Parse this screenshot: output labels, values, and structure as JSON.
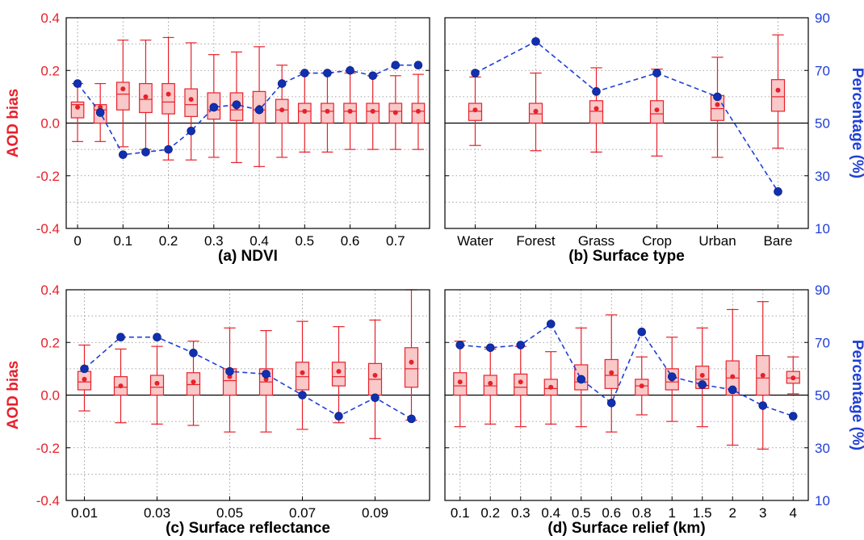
{
  "figure": {
    "left_axis_label": "AOD bias",
    "right_axis_label": "Percentage (%)",
    "colors": {
      "box": "#e8202a",
      "box_fill": "#f9c8c8",
      "line": "#1f3fd6",
      "marker": "#1030b0",
      "left_axis": "#e8202a",
      "right_axis": "#1f3fd6",
      "zero_line": "#000000"
    }
  },
  "chart_data": [
    {
      "type": "box",
      "id": "a",
      "xlabel": "(a) NDVI",
      "left_ylim": [
        -0.4,
        0.4
      ],
      "left_yticks": [
        "0.4",
        "0.2",
        "0.0",
        "-0.2",
        "-0.4"
      ],
      "right_ylim": [
        10,
        90
      ],
      "right_yticks": [
        "90",
        "70",
        "50",
        "30",
        "10"
      ],
      "grid": true,
      "x_ticks": [
        "0",
        "0.1",
        "0.2",
        "0.3",
        "0.4",
        "0.5",
        "0.6",
        "0.7"
      ],
      "categories": [
        "0",
        "0.05",
        "0.1",
        "0.15",
        "0.2",
        "0.25",
        "0.3",
        "0.35",
        "0.4",
        "0.45",
        "0.5",
        "0.55",
        "0.6",
        "0.65",
        "0.7",
        "0.75"
      ],
      "boxes": [
        {
          "whisker_low": -0.07,
          "q1": 0.02,
          "median": 0.07,
          "q3": 0.08,
          "whisker_high": 0.15,
          "mean": 0.06
        },
        {
          "whisker_low": -0.07,
          "q1": 0.0,
          "median": 0.05,
          "q3": 0.07,
          "whisker_high": 0.15,
          "mean": 0.06
        },
        {
          "whisker_low": -0.09,
          "q1": 0.05,
          "median": 0.11,
          "q3": 0.155,
          "whisker_high": 0.315,
          "mean": 0.13
        },
        {
          "whisker_low": -0.1,
          "q1": 0.04,
          "median": 0.09,
          "q3": 0.15,
          "whisker_high": 0.315,
          "mean": 0.1
        },
        {
          "whisker_low": -0.14,
          "q1": 0.035,
          "median": 0.08,
          "q3": 0.15,
          "whisker_high": 0.325,
          "mean": 0.11
        },
        {
          "whisker_low": -0.14,
          "q1": 0.025,
          "median": 0.07,
          "q3": 0.13,
          "whisker_high": 0.305,
          "mean": 0.09
        },
        {
          "whisker_low": -0.13,
          "q1": 0.015,
          "median": 0.05,
          "q3": 0.115,
          "whisker_high": 0.26,
          "mean": 0.06
        },
        {
          "whisker_low": -0.15,
          "q1": 0.01,
          "median": 0.05,
          "q3": 0.115,
          "whisker_high": 0.27,
          "mean": 0.06
        },
        {
          "whisker_low": -0.165,
          "q1": 0.0,
          "median": 0.05,
          "q3": 0.12,
          "whisker_high": 0.29,
          "mean": 0.06
        },
        {
          "whisker_low": -0.13,
          "q1": 0.0,
          "median": 0.05,
          "q3": 0.09,
          "whisker_high": 0.22,
          "mean": 0.05
        },
        {
          "whisker_low": -0.11,
          "q1": 0.0,
          "median": 0.045,
          "q3": 0.075,
          "whisker_high": 0.19,
          "mean": 0.045
        },
        {
          "whisker_low": -0.11,
          "q1": 0.0,
          "median": 0.045,
          "q3": 0.075,
          "whisker_high": 0.19,
          "mean": 0.045
        },
        {
          "whisker_low": -0.1,
          "q1": 0.0,
          "median": 0.045,
          "q3": 0.075,
          "whisker_high": 0.19,
          "mean": 0.045
        },
        {
          "whisker_low": -0.1,
          "q1": 0.0,
          "median": 0.045,
          "q3": 0.075,
          "whisker_high": 0.18,
          "mean": 0.045
        },
        {
          "whisker_low": -0.1,
          "q1": 0.0,
          "median": 0.045,
          "q3": 0.075,
          "whisker_high": 0.18,
          "mean": 0.04
        },
        {
          "whisker_low": -0.1,
          "q1": 0.0,
          "median": 0.045,
          "q3": 0.075,
          "whisker_high": 0.185,
          "mean": 0.045
        }
      ],
      "percentage": [
        65,
        54,
        38,
        39,
        40,
        47,
        56,
        57,
        55,
        65,
        69,
        69,
        70,
        68,
        72,
        72
      ]
    },
    {
      "type": "box",
      "id": "b",
      "xlabel": "(b) Surface type",
      "left_ylim": [
        -0.4,
        0.4
      ],
      "left_yticks": [
        "0.4",
        "0.2",
        "0.0",
        "-0.2",
        "-0.4"
      ],
      "right_ylim": [
        10,
        90
      ],
      "right_yticks": [
        "90",
        "70",
        "50",
        "30",
        "10"
      ],
      "grid": true,
      "x_ticks": [
        "Water",
        "Forest",
        "Grass",
        "Crop",
        "Urban",
        "Bare"
      ],
      "categories": [
        "Water",
        "Forest",
        "Grass",
        "Crop",
        "Urban",
        "Bare"
      ],
      "boxes": [
        {
          "whisker_low": -0.085,
          "q1": 0.01,
          "median": 0.045,
          "q3": 0.075,
          "whisker_high": 0.175,
          "mean": 0.05
        },
        {
          "whisker_low": -0.105,
          "q1": 0.0,
          "median": 0.035,
          "q3": 0.075,
          "whisker_high": 0.19,
          "mean": 0.045
        },
        {
          "whisker_low": -0.11,
          "q1": 0.0,
          "median": 0.045,
          "q3": 0.085,
          "whisker_high": 0.21,
          "mean": 0.055
        },
        {
          "whisker_low": -0.125,
          "q1": 0.0,
          "median": 0.035,
          "q3": 0.085,
          "whisker_high": 0.205,
          "mean": 0.05
        },
        {
          "whisker_low": -0.13,
          "q1": 0.01,
          "median": 0.055,
          "q3": 0.105,
          "whisker_high": 0.25,
          "mean": 0.07
        },
        {
          "whisker_low": -0.095,
          "q1": 0.045,
          "median": 0.1,
          "q3": 0.165,
          "whisker_high": 0.335,
          "mean": 0.125
        }
      ],
      "percentage": [
        69,
        81,
        62,
        69,
        60,
        24
      ]
    },
    {
      "type": "box",
      "id": "c",
      "xlabel": "(c) Surface reflectance",
      "left_ylim": [
        -0.4,
        0.4
      ],
      "left_yticks": [
        "0.4",
        "0.2",
        "0.0",
        "-0.2",
        "-0.4"
      ],
      "right_ylim": [
        10,
        90
      ],
      "right_yticks": [
        "90",
        "70",
        "50",
        "30",
        "10"
      ],
      "grid": true,
      "x_ticks": [
        "0.01",
        "0.03",
        "0.05",
        "0.07",
        "0.09"
      ],
      "categories": [
        "0.01",
        "0.02",
        "0.03",
        "0.04",
        "0.05",
        "0.06",
        "0.07",
        "0.08",
        "0.09",
        "0.10"
      ],
      "boxes": [
        {
          "whisker_low": -0.06,
          "q1": 0.02,
          "median": 0.05,
          "q3": 0.09,
          "whisker_high": 0.19,
          "mean": 0.06
        },
        {
          "whisker_low": -0.105,
          "q1": 0.0,
          "median": 0.03,
          "q3": 0.07,
          "whisker_high": 0.175,
          "mean": 0.035
        },
        {
          "whisker_low": -0.11,
          "q1": 0.0,
          "median": 0.03,
          "q3": 0.075,
          "whisker_high": 0.185,
          "mean": 0.045
        },
        {
          "whisker_low": -0.115,
          "q1": 0.0,
          "median": 0.04,
          "q3": 0.085,
          "whisker_high": 0.205,
          "mean": 0.05
        },
        {
          "whisker_low": -0.14,
          "q1": 0.0,
          "median": 0.055,
          "q3": 0.1,
          "whisker_high": 0.255,
          "mean": 0.07
        },
        {
          "whisker_low": -0.14,
          "q1": 0.0,
          "median": 0.05,
          "q3": 0.1,
          "whisker_high": 0.245,
          "mean": 0.06
        },
        {
          "whisker_low": -0.13,
          "q1": 0.02,
          "median": 0.07,
          "q3": 0.125,
          "whisker_high": 0.28,
          "mean": 0.085
        },
        {
          "whisker_low": -0.105,
          "q1": 0.035,
          "median": 0.07,
          "q3": 0.125,
          "whisker_high": 0.26,
          "mean": 0.09
        },
        {
          "whisker_low": -0.165,
          "q1": 0.0,
          "median": 0.06,
          "q3": 0.12,
          "whisker_high": 0.285,
          "mean": 0.075
        },
        {
          "whisker_low": -0.095,
          "q1": 0.03,
          "median": 0.1,
          "q3": 0.18,
          "whisker_high": 0.4,
          "mean": 0.125
        }
      ],
      "percentage": [
        60,
        72,
        72,
        66,
        59,
        58,
        50,
        42,
        49,
        41
      ]
    },
    {
      "type": "box",
      "id": "d",
      "xlabel": "(d) Surface relief (km)",
      "left_ylim": [
        -0.4,
        0.4
      ],
      "left_yticks": [
        "0.4",
        "0.2",
        "0.0",
        "-0.2",
        "-0.4"
      ],
      "right_ylim": [
        10,
        90
      ],
      "right_yticks": [
        "90",
        "70",
        "50",
        "30",
        "10"
      ],
      "grid": true,
      "x_ticks": [
        "0.1",
        "0.2",
        "0.3",
        "0.4",
        "0.5",
        "0.6",
        "0.8",
        "1",
        "1.5",
        "2",
        "3",
        "4"
      ],
      "categories": [
        "0.1",
        "0.2",
        "0.3",
        "0.4",
        "0.5",
        "0.6",
        "0.8",
        "1",
        "1.5",
        "2",
        "3",
        "4"
      ],
      "boxes": [
        {
          "whisker_low": -0.12,
          "q1": 0.0,
          "median": 0.035,
          "q3": 0.085,
          "whisker_high": 0.205,
          "mean": 0.05
        },
        {
          "whisker_low": -0.11,
          "q1": 0.0,
          "median": 0.035,
          "q3": 0.075,
          "whisker_high": 0.175,
          "mean": 0.045
        },
        {
          "whisker_low": -0.12,
          "q1": 0.0,
          "median": 0.03,
          "q3": 0.08,
          "whisker_high": 0.185,
          "mean": 0.05
        },
        {
          "whisker_low": -0.11,
          "q1": 0.0,
          "median": 0.025,
          "q3": 0.06,
          "whisker_high": 0.165,
          "mean": 0.03
        },
        {
          "whisker_low": -0.12,
          "q1": 0.02,
          "median": 0.05,
          "q3": 0.115,
          "whisker_high": 0.255,
          "mean": 0.06
        },
        {
          "whisker_low": -0.14,
          "q1": 0.025,
          "median": 0.075,
          "q3": 0.135,
          "whisker_high": 0.305,
          "mean": 0.085
        },
        {
          "whisker_low": -0.075,
          "q1": 0.0,
          "median": 0.035,
          "q3": 0.06,
          "whisker_high": 0.145,
          "mean": 0.035
        },
        {
          "whisker_low": -0.1,
          "q1": 0.02,
          "median": 0.05,
          "q3": 0.1,
          "whisker_high": 0.22,
          "mean": 0.06
        },
        {
          "whisker_low": -0.12,
          "q1": 0.025,
          "median": 0.06,
          "q3": 0.11,
          "whisker_high": 0.255,
          "mean": 0.075
        },
        {
          "whisker_low": -0.19,
          "q1": 0.0,
          "median": 0.065,
          "q3": 0.13,
          "whisker_high": 0.325,
          "mean": 0.07
        },
        {
          "whisker_low": -0.205,
          "q1": 0.0,
          "median": 0.065,
          "q3": 0.15,
          "whisker_high": 0.355,
          "mean": 0.075
        },
        {
          "whisker_low": 0.005,
          "q1": 0.045,
          "median": 0.065,
          "q3": 0.09,
          "whisker_high": 0.145,
          "mean": 0.065
        }
      ],
      "percentage": [
        69,
        68,
        69,
        77,
        56,
        47,
        74,
        57,
        54,
        52,
        46,
        42
      ]
    }
  ]
}
